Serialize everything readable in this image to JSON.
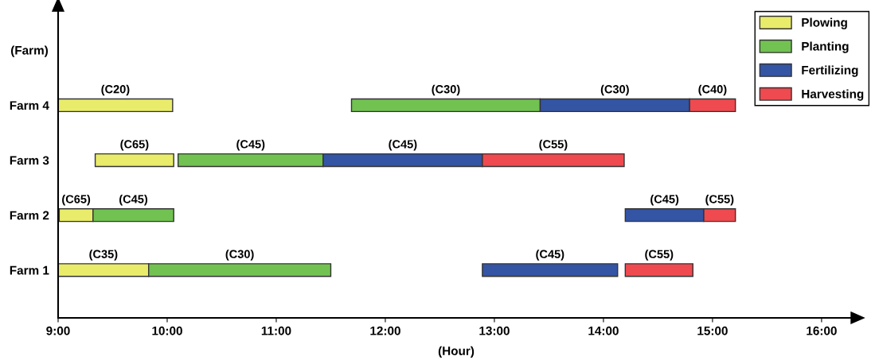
{
  "chart_data": {
    "type": "bar",
    "orientation": "horizontal",
    "xlabel": "(Hour)",
    "ylabel": "(Farm)",
    "categories": [
      "Farm 4",
      "Farm 3",
      "Farm 2",
      "Farm 1"
    ],
    "series": [
      {
        "name": "Plowing",
        "color": "#e8ec6a",
        "base": [
          9.0,
          9.34,
          9.01,
          9.0
        ],
        "values": [
          1.05,
          0.72,
          0.31,
          0.83
        ],
        "value_labels": [
          "(C20)",
          "(C65)",
          "(C65)",
          "(C35)"
        ]
      },
      {
        "name": "Planting",
        "color": "#72c252",
        "base": [
          11.69,
          10.1,
          9.32,
          9.83
        ],
        "values": [
          1.73,
          1.33,
          0.74,
          1.67
        ],
        "value_labels": [
          "(C30)",
          "(C45)",
          "(C45)",
          "(C30)"
        ]
      },
      {
        "name": "Fertilizing",
        "color": "#3454a4",
        "base": [
          13.42,
          11.43,
          14.2,
          12.89
        ],
        "values": [
          1.37,
          1.46,
          0.72,
          1.24
        ],
        "value_labels": [
          "(C30)",
          "(C45)",
          "(C45)",
          "(C45)"
        ]
      },
      {
        "name": "Harvesting",
        "color": "#ee4a50",
        "base": [
          14.79,
          12.89,
          14.92,
          14.2
        ],
        "values": [
          0.42,
          1.3,
          0.29,
          0.62
        ],
        "value_labels": [
          "(C40)",
          "(C55)",
          "(C55)",
          "(C55)"
        ]
      }
    ],
    "xlim": [
      9,
      16.3
    ],
    "xticks": [
      {
        "value": 9,
        "label": "9:00"
      },
      {
        "value": 10,
        "label": "10:00"
      },
      {
        "value": 11,
        "label": "11:00"
      },
      {
        "value": 12,
        "label": "12:00"
      },
      {
        "value": 13,
        "label": "13:00"
      },
      {
        "value": 14,
        "label": "14:00"
      },
      {
        "value": 15,
        "label": "15:00"
      },
      {
        "value": 16,
        "label": "16:00"
      }
    ],
    "legend": "top right"
  }
}
